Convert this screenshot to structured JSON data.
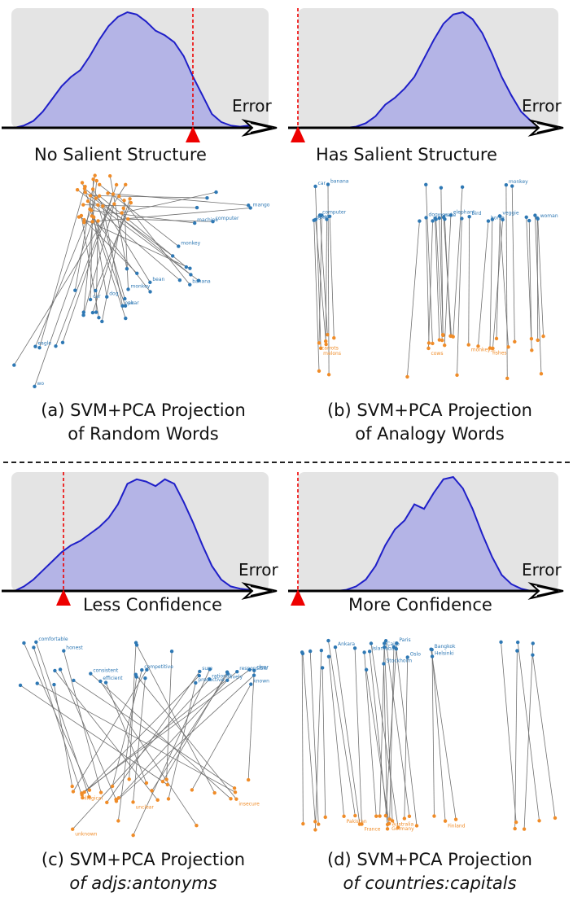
{
  "panels": [
    {
      "id": "a",
      "hist_label": "No Salient Structure",
      "error_label": "Error",
      "caption_line1": "(a) SVM+PCA Projection",
      "caption_line2": "of Random Words",
      "caption_line2_italic": false,
      "marker_position": 0.73,
      "dist": [
        0,
        0.02,
        0.06,
        0.14,
        0.25,
        0.36,
        0.44,
        0.5,
        0.62,
        0.76,
        0.88,
        0.96,
        1.0,
        0.98,
        0.92,
        0.84,
        0.8,
        0.74,
        0.62,
        0.44,
        0.28,
        0.12,
        0.05,
        0.02,
        0.01,
        0.02,
        0.0
      ],
      "words_top": [
        "computer",
        "car",
        "pear",
        "monkey",
        "bean",
        "monkey",
        "mango",
        "machine",
        "dog",
        "eagle",
        "oak",
        "banana",
        "wo"
      ]
    },
    {
      "id": "b",
      "hist_label": "Has Salient Structure",
      "error_label": "Error",
      "caption_line1": "(b) SVM+PCA Projection",
      "caption_line2": "of Analogy Words",
      "caption_line2_italic": false,
      "marker_position": 0.0,
      "dist": [
        0,
        0,
        0,
        0,
        0,
        0,
        0.01,
        0.04,
        0.1,
        0.2,
        0.26,
        0.34,
        0.44,
        0.6,
        0.76,
        0.9,
        0.98,
        1.0,
        0.94,
        0.82,
        0.64,
        0.44,
        0.28,
        0.14,
        0.06,
        0.02,
        0.0
      ],
      "words_top": [
        "pear",
        "banana",
        "goat",
        "elephant",
        "bird",
        "dog",
        "man",
        "snake",
        "monkey",
        "veggie",
        "horse",
        "woman",
        "car",
        "computer"
      ],
      "words_bottom": [
        "melons",
        "carrots",
        "monkeys",
        "cows",
        "fishes"
      ]
    },
    {
      "id": "c",
      "hist_label": "Less Confidence",
      "error_label": "Error",
      "caption_line1": "(c) SVM+PCA Projection",
      "caption_line2": "of adjs:antonyms",
      "caption_line2_italic": true,
      "marker_position": 0.2,
      "dist": [
        0,
        0.04,
        0.1,
        0.18,
        0.26,
        0.34,
        0.4,
        0.44,
        0.5,
        0.56,
        0.64,
        0.76,
        0.94,
        0.98,
        0.96,
        0.92,
        0.98,
        0.94,
        0.78,
        0.6,
        0.4,
        0.22,
        0.1,
        0.04,
        0.02,
        0.01,
        0.0
      ],
      "words_top": [
        "efficient",
        "comfortable",
        "productive",
        "consistent",
        "rational",
        "honest",
        "competitive",
        "sure",
        "responsible",
        "clear",
        "known",
        "lively"
      ],
      "words_bottom": [
        "illogical",
        "insecure",
        "unknown",
        "unclear"
      ]
    },
    {
      "id": "d",
      "hist_label": "More Confidence",
      "error_label": "Error",
      "caption_line1": "(d) SVM+PCA Projection",
      "caption_line2": "of countries:capitals",
      "caption_line2_italic": true,
      "marker_position": 0.0,
      "dist": [
        0,
        0,
        0,
        0,
        0,
        0.01,
        0.04,
        0.1,
        0.22,
        0.4,
        0.54,
        0.62,
        0.76,
        0.72,
        0.86,
        0.98,
        1.0,
        0.9,
        0.72,
        0.5,
        0.3,
        0.14,
        0.06,
        0.02,
        0.0,
        0.0,
        0.0
      ],
      "words_top": [
        "Stockholm",
        "Cairo",
        "Helsinki",
        "Paris",
        "Bangkok",
        "Oslo",
        "Ankara",
        "Islamabad"
      ],
      "words_bottom": [
        "France",
        "Australia",
        "Finland",
        "Pakistan",
        "Germany"
      ]
    }
  ],
  "colors": {
    "fill": "#b4b4e6",
    "line": "#1f1fc8",
    "bg": "#e4e4e4",
    "marker": "#ee0000",
    "top_dot": "#2e78b4",
    "bottom_dot": "#f08c28",
    "link": "#707070"
  }
}
